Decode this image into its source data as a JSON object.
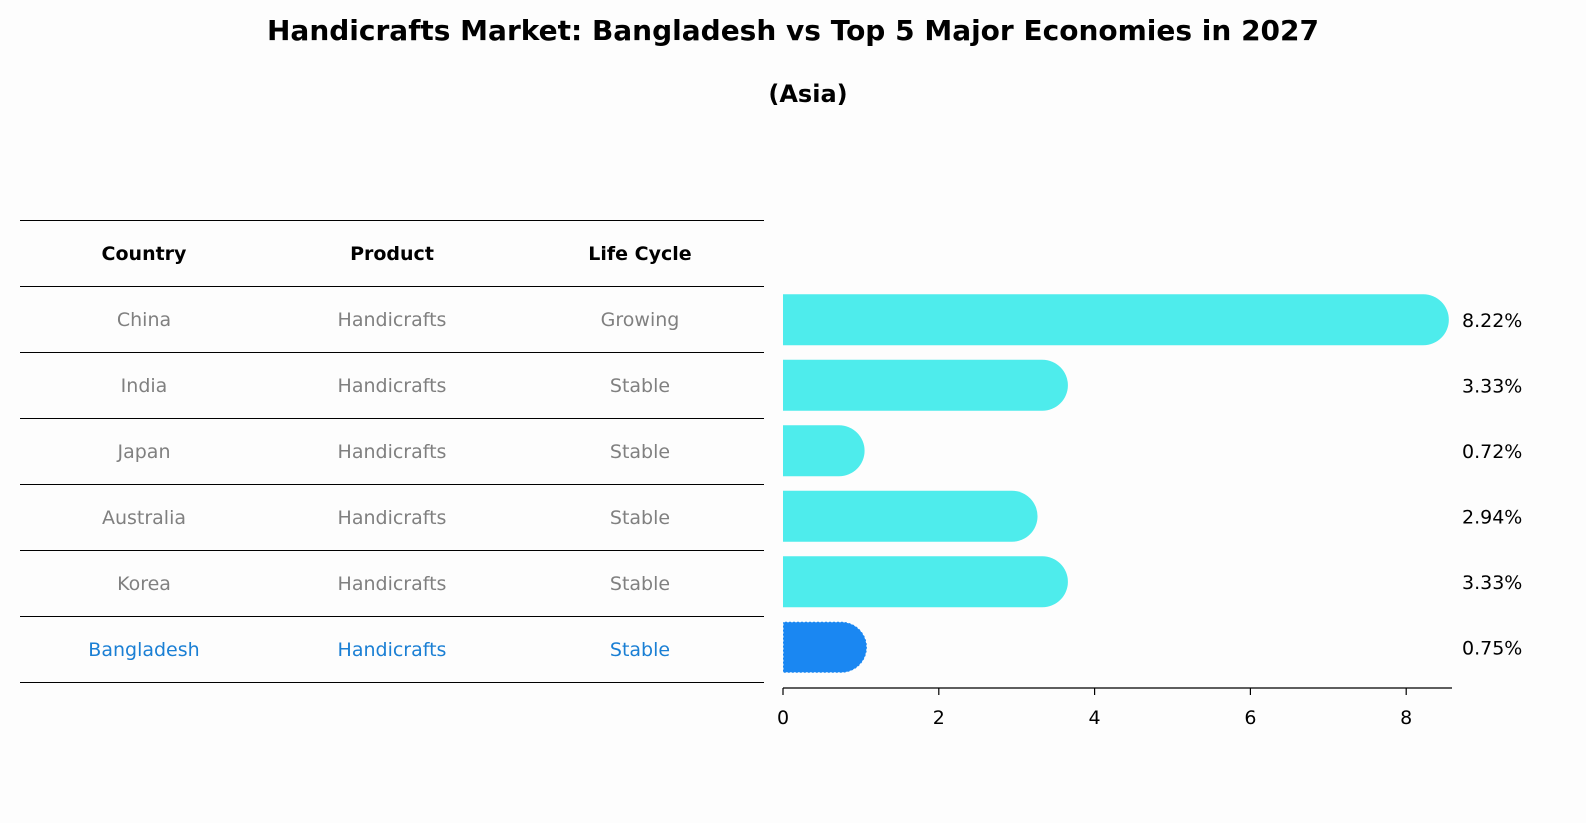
{
  "title": "Handicrafts Market: Bangladesh vs Top 5 Major Economies in 2027",
  "subtitle": "(Asia)",
  "table": {
    "headers": [
      "Country",
      "Product",
      "Life Cycle"
    ],
    "rows": [
      {
        "country": "China",
        "product": "Handicrafts",
        "life_cycle": "Growing"
      },
      {
        "country": "India",
        "product": "Handicrafts",
        "life_cycle": "Stable"
      },
      {
        "country": "Japan",
        "product": "Handicrafts",
        "life_cycle": "Stable"
      },
      {
        "country": "Australia",
        "product": "Handicrafts",
        "life_cycle": "Stable"
      },
      {
        "country": "Korea",
        "product": "Handicrafts",
        "life_cycle": "Stable"
      },
      {
        "country": "Bangladesh",
        "product": "Handicrafts",
        "life_cycle": "Stable"
      }
    ]
  },
  "colors": {
    "bar": "#4eecec",
    "highlight_bar": "#1a87f2",
    "highlight_text": "#1a7fd4",
    "row_text": "#808080"
  },
  "chart_data": {
    "type": "bar",
    "orientation": "horizontal",
    "categories": [
      "China",
      "India",
      "Japan",
      "Australia",
      "Korea",
      "Bangladesh"
    ],
    "values": [
      8.22,
      3.33,
      0.72,
      2.94,
      3.33,
      0.75
    ],
    "value_labels": [
      "8.22%",
      "3.33%",
      "0.72%",
      "2.94%",
      "3.33%",
      "0.75%"
    ],
    "highlight": "Bangladesh",
    "xlim": [
      0,
      8.6
    ],
    "xticks": [
      0,
      2,
      4,
      6,
      8
    ],
    "xtick_labels": [
      "0",
      "2",
      "4",
      "6",
      "8"
    ],
    "title": "Handicrafts Market: Bangladesh vs Top 5 Major Economies in 2027",
    "subtitle": "(Asia)",
    "xlabel": "",
    "ylabel": ""
  }
}
